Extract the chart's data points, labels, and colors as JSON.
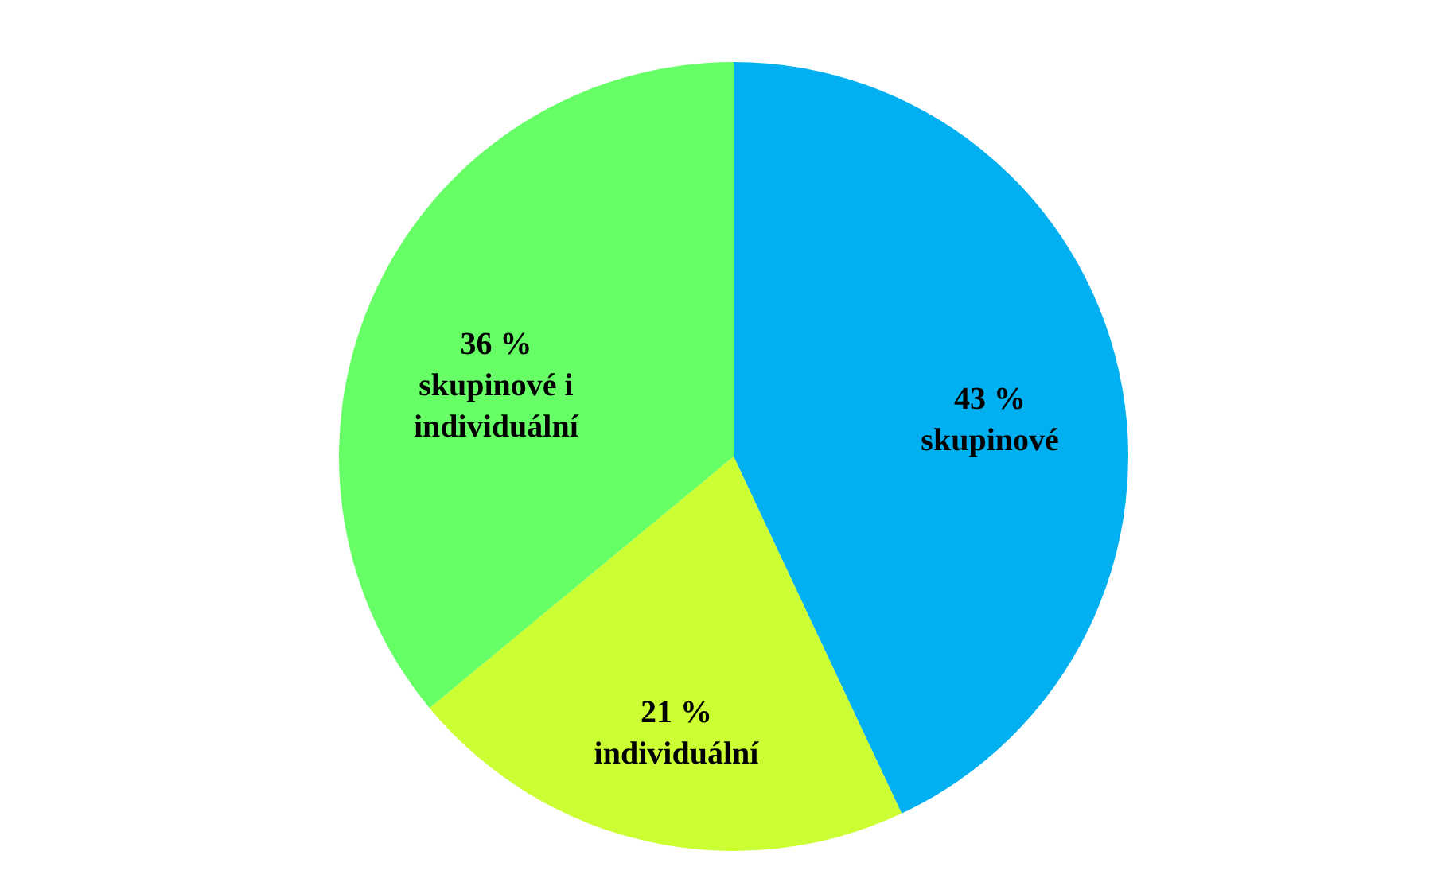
{
  "chart_data": {
    "type": "pie",
    "categories": [
      "skupinové",
      "individuální",
      "skupinové i individuální"
    ],
    "values": [
      43,
      21,
      36
    ],
    "colors": [
      "#00b0f0",
      "#ccff33",
      "#66ff66"
    ],
    "value_labels": [
      "43 %",
      "21 %",
      "36 %"
    ]
  }
}
